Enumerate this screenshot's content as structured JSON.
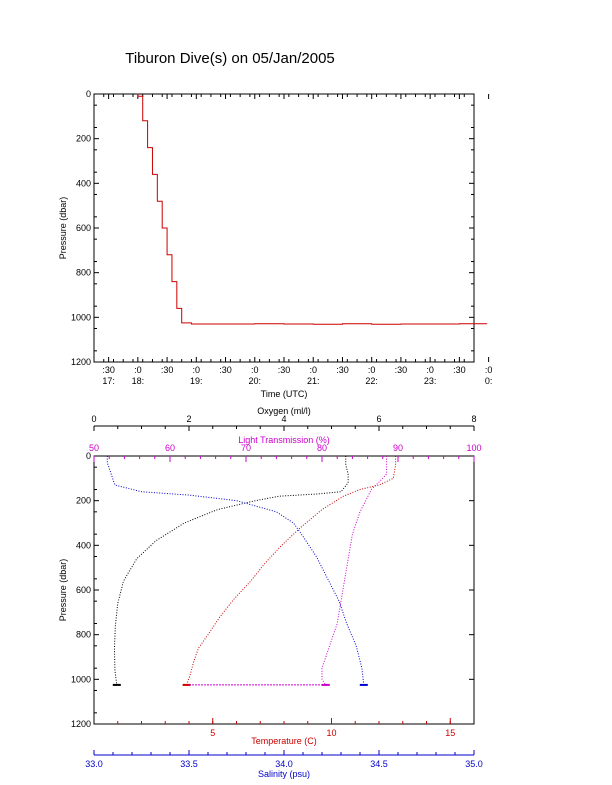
{
  "title": "Tiburon Dive(s) on 05/Jan/2005",
  "chart_data": [
    {
      "type": "line",
      "title": "Tiburon Dive(s) on 05/Jan/2005",
      "xlabel": "Time (UTC)",
      "ylabel": "Pressure (dbar)",
      "xlim": [
        "17:15",
        "23:45"
      ],
      "ylim": [
        1200,
        0
      ],
      "y_ticks": [
        "0",
        "200",
        "400",
        "600",
        "800",
        "1000",
        "1200"
      ],
      "x_ticks": [
        {
          "top": ":30",
          "bottom": "17:"
        },
        {
          "top": ":0",
          "bottom": "18:"
        },
        {
          "top": ":30",
          "bottom": ""
        },
        {
          "top": ":0",
          "bottom": "19:"
        },
        {
          "top": ":30",
          "bottom": ""
        },
        {
          "top": ":0",
          "bottom": "20:"
        },
        {
          "top": ":30",
          "bottom": ""
        },
        {
          "top": ":0",
          "bottom": "21:"
        },
        {
          "top": ":30",
          "bottom": ""
        },
        {
          "top": ":0",
          "bottom": "22:"
        },
        {
          "top": ":30",
          "bottom": ""
        },
        {
          "top": ":0",
          "bottom": "23:"
        },
        {
          "top": ":30",
          "bottom": ""
        },
        {
          "top": ":0",
          "bottom": "0:"
        }
      ],
      "series": [
        {
          "color": "#cc0000",
          "x": [
            "17:59",
            "18:00",
            "18:05",
            "18:10",
            "18:15",
            "18:20",
            "18:25",
            "18:30",
            "18:35",
            "18:40",
            "18:45",
            "18:55",
            "19:30",
            "20:00",
            "20:30",
            "21:00",
            "21:30",
            "22:00",
            "22:30",
            "23:00",
            "23:30",
            "23:58"
          ],
          "y": [
            0,
            10,
            120,
            240,
            360,
            480,
            600,
            720,
            840,
            960,
            1025,
            1030,
            1030,
            1029,
            1030,
            1031,
            1029,
            1031,
            1030,
            1030,
            1029,
            1030
          ]
        }
      ]
    },
    {
      "type": "line",
      "ylabel": "Pressure (dbar)",
      "ylim": [
        1200,
        0
      ],
      "y_ticks": [
        "0",
        "200",
        "400",
        "600",
        "800",
        "1000",
        "1200"
      ],
      "axes": {
        "oxygen": {
          "label": "Oxygen (ml/l)",
          "range": [
            0,
            8
          ],
          "ticks": [
            "0",
            "2",
            "4",
            "6",
            "8"
          ],
          "color": "#000000",
          "position": "top"
        },
        "light": {
          "label": "Light Transmission (%)",
          "range": [
            50,
            100
          ],
          "ticks": [
            "50",
            "60",
            "70",
            "80",
            "90",
            "100"
          ],
          "color": "#cc00cc",
          "position": "top"
        },
        "temperature": {
          "label": "Temperature (C)",
          "range": [
            0,
            16
          ],
          "ticks": [
            "5",
            "10",
            "15"
          ],
          "color": "#cc0000",
          "position": "bottom"
        },
        "salinity": {
          "label": "Salinity (psu)",
          "range": [
            33.0,
            35.0
          ],
          "ticks": [
            "33.0",
            "33.5",
            "34.0",
            "34.5",
            "35.0"
          ],
          "color": "#0000cc",
          "position": "bottom"
        }
      },
      "series": [
        {
          "axis": "oxygen",
          "color": "#000000",
          "x": [
            5.3,
            5.3,
            5.35,
            5.35,
            5.2,
            4.7,
            3.9,
            3.4,
            2.6,
            1.9,
            1.3,
            0.9,
            0.62,
            0.5,
            0.45,
            0.43,
            0.44,
            0.48
          ],
          "y": [
            0,
            40,
            80,
            120,
            160,
            170,
            180,
            200,
            240,
            300,
            380,
            460,
            560,
            660,
            760,
            860,
            960,
            1025
          ]
        },
        {
          "axis": "light",
          "color": "#cc00cc",
          "x": [
            88.5,
            88.5,
            88.5,
            88.0,
            86.5,
            85.0,
            84.0,
            83.5,
            83.0,
            82.5,
            82.0,
            81.5,
            81.0,
            80.5,
            80.0,
            80.0,
            80.5
          ],
          "y": [
            0,
            40,
            80,
            100,
            150,
            250,
            350,
            450,
            550,
            650,
            750,
            800,
            850,
            900,
            950,
            1000,
            1025
          ]
        },
        {
          "axis": "temperature",
          "color": "#cc0000",
          "x": [
            12.7,
            12.7,
            12.6,
            12.0,
            11.2,
            10.5,
            9.6,
            8.7,
            7.9,
            7.2,
            6.6,
            5.9,
            5.3,
            4.8,
            4.4,
            4.2,
            4.05,
            3.9
          ],
          "y": [
            0,
            40,
            100,
            130,
            150,
            180,
            240,
            320,
            400,
            480,
            560,
            640,
            720,
            800,
            860,
            920,
            980,
            1025
          ]
        },
        {
          "axis": "salinity",
          "color": "#0000cc",
          "x": [
            33.07,
            33.07,
            33.09,
            33.11,
            33.25,
            33.5,
            33.75,
            33.96,
            34.05,
            34.1,
            34.17,
            34.23,
            34.29,
            34.33,
            34.38,
            34.41,
            34.42
          ],
          "y": [
            0,
            30,
            80,
            130,
            160,
            175,
            200,
            250,
            300,
            360,
            450,
            550,
            650,
            750,
            850,
            950,
            1025
          ]
        }
      ]
    }
  ]
}
